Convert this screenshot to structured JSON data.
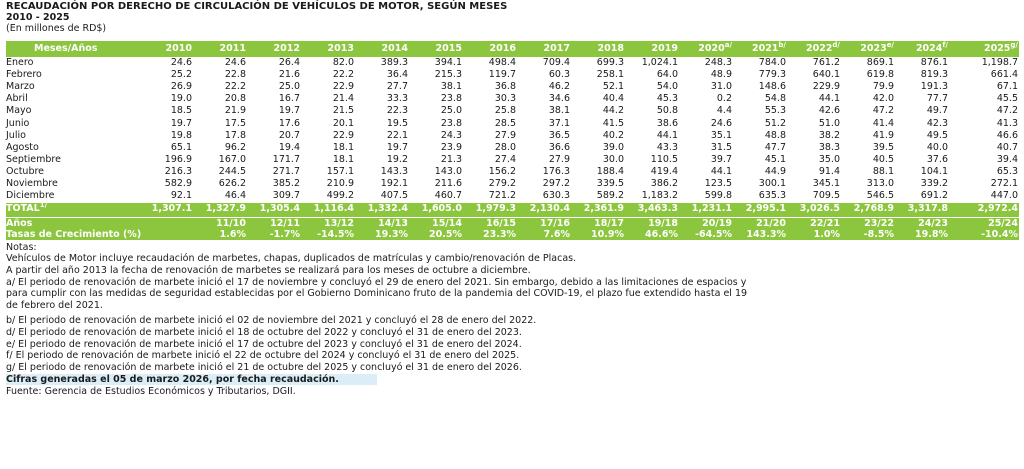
{
  "title": "RECAUDACIÓN POR DERECHO DE CIRCULACIÓN DE VEHÍCULOS DE MOTOR, SEGÚN MESES",
  "years_range": "2010 - 2025",
  "units": "(En millones de RD$)",
  "table": {
    "corner_label": "Meses/Años",
    "years": [
      {
        "label": "2010",
        "sup": ""
      },
      {
        "label": "2011",
        "sup": ""
      },
      {
        "label": "2012",
        "sup": ""
      },
      {
        "label": "2013",
        "sup": ""
      },
      {
        "label": "2014",
        "sup": ""
      },
      {
        "label": "2015",
        "sup": ""
      },
      {
        "label": "2016",
        "sup": ""
      },
      {
        "label": "2017",
        "sup": ""
      },
      {
        "label": "2018",
        "sup": ""
      },
      {
        "label": "2019",
        "sup": ""
      },
      {
        "label": "2020",
        "sup": "a/"
      },
      {
        "label": "2021",
        "sup": "b/"
      },
      {
        "label": "2022",
        "sup": "d/"
      },
      {
        "label": "2023",
        "sup": "e/"
      },
      {
        "label": "2024",
        "sup": "f/"
      },
      {
        "label": "2025",
        "sup": "g/"
      }
    ],
    "rows": [
      {
        "month": "Enero",
        "values": [
          "24.6",
          "24.6",
          "26.4",
          "82.0",
          "389.3",
          "394.1",
          "498.4",
          "709.4",
          "699.3",
          "1,024.1",
          "248.3",
          "784.0",
          "761.2",
          "869.1",
          "876.1",
          "1,198.7"
        ]
      },
      {
        "month": "Febrero",
        "values": [
          "25.2",
          "22.8",
          "21.6",
          "22.2",
          "36.4",
          "215.3",
          "119.7",
          "60.3",
          "258.1",
          "64.0",
          "48.9",
          "779.3",
          "640.1",
          "619.8",
          "819.3",
          "661.4"
        ]
      },
      {
        "month": "Marzo",
        "values": [
          "26.9",
          "22.2",
          "25.0",
          "22.9",
          "27.7",
          "38.1",
          "36.8",
          "46.2",
          "52.1",
          "54.0",
          "31.0",
          "148.6",
          "229.9",
          "79.9",
          "191.3",
          "67.1"
        ]
      },
      {
        "month": "Abril",
        "values": [
          "19.0",
          "20.8",
          "16.7",
          "21.4",
          "33.3",
          "23.8",
          "30.3",
          "34.6",
          "40.4",
          "45.3",
          "0.2",
          "54.8",
          "44.1",
          "42.0",
          "77.7",
          "45.5"
        ]
      },
      {
        "month": "Mayo",
        "values": [
          "18.5",
          "21.9",
          "19.7",
          "21.5",
          "22.3",
          "25.0",
          "25.8",
          "38.1",
          "44.2",
          "50.8",
          "4.4",
          "55.3",
          "42.6",
          "47.2",
          "49.7",
          "47.2"
        ]
      },
      {
        "month": "Junio",
        "values": [
          "19.7",
          "17.5",
          "17.6",
          "20.1",
          "19.5",
          "23.8",
          "28.5",
          "37.1",
          "41.5",
          "38.6",
          "24.6",
          "51.2",
          "51.0",
          "41.4",
          "42.3",
          "41.3"
        ]
      },
      {
        "month": "Julio",
        "values": [
          "19.8",
          "17.8",
          "20.7",
          "22.9",
          "22.1",
          "24.3",
          "27.9",
          "36.5",
          "40.2",
          "44.1",
          "35.1",
          "48.8",
          "38.2",
          "41.9",
          "49.5",
          "46.6"
        ]
      },
      {
        "month": "Agosto",
        "values": [
          "65.1",
          "96.2",
          "19.4",
          "18.1",
          "19.7",
          "23.9",
          "28.0",
          "36.6",
          "39.0",
          "43.3",
          "31.5",
          "47.7",
          "38.3",
          "39.5",
          "40.0",
          "40.7"
        ]
      },
      {
        "month": "Septiembre",
        "values": [
          "196.9",
          "167.0",
          "171.7",
          "18.1",
          "19.2",
          "21.3",
          "27.4",
          "27.9",
          "30.0",
          "110.5",
          "39.7",
          "45.1",
          "35.0",
          "40.5",
          "37.6",
          "39.4"
        ]
      },
      {
        "month": "Octubre",
        "values": [
          "216.3",
          "244.5",
          "271.7",
          "157.1",
          "143.3",
          "143.0",
          "156.2",
          "176.3",
          "188.4",
          "419.4",
          "44.1",
          "44.9",
          "91.4",
          "88.1",
          "104.1",
          "65.3"
        ]
      },
      {
        "month": "Noviembre",
        "values": [
          "582.9",
          "626.2",
          "385.2",
          "210.9",
          "192.1",
          "211.6",
          "279.2",
          "297.2",
          "339.5",
          "386.2",
          "123.5",
          "300.1",
          "345.1",
          "313.0",
          "339.2",
          "272.1"
        ]
      },
      {
        "month": "Diciembre",
        "values": [
          "92.1",
          "46.4",
          "309.7",
          "499.2",
          "407.5",
          "460.7",
          "721.2",
          "630.3",
          "589.2",
          "1,183.2",
          "599.8",
          "635.3",
          "709.5",
          "546.5",
          "691.2",
          "447.0"
        ]
      }
    ],
    "total": {
      "label": "TOTAL",
      "sup": "1/",
      "values": [
        "1,307.1",
        "1,327.9",
        "1,305.4",
        "1,116.4",
        "1,332.4",
        "1,605.0",
        "1,979.3",
        "2,130.4",
        "2,361.9",
        "3,463.3",
        "1,231.1",
        "2,995.1",
        "3,026.5",
        "2,768.9",
        "3,317.8",
        "2,972.4"
      ]
    }
  },
  "growth": {
    "years_label": "Años",
    "rate_label": "Tasas de Crecimiento (%)",
    "periods": [
      "11/10",
      "12/11",
      "13/12",
      "14/13",
      "15/14",
      "16/15",
      "17/16",
      "18/17",
      "19/18",
      "20/19",
      "21/20",
      "22/21",
      "23/22",
      "24/23",
      "25/24"
    ],
    "rates": [
      "1.6%",
      "-1.7%",
      "-14.5%",
      "19.3%",
      "20.5%",
      "23.3%",
      "7.6%",
      "10.9%",
      "46.6%",
      "-64.5%",
      "143.3%",
      "1.0%",
      "-8.5%",
      "19.8%",
      "-10.4%"
    ]
  },
  "notes": {
    "heading": "Notas:",
    "lines": [
      "Vehículos de Motor incluye recaudación de marbetes, chapas, duplicados de matrículas y cambio/renovación de Placas.",
      "A partir del año 2013 la fecha de renovación de marbetes se realizará para los meses de octubre a diciembre.",
      "a/ El periodo de renovación de marbete inició el 17 de noviembre y concluyó el 29 de enero del 2021. Sin embargo, debido a las limitaciones de espacios y",
      "para cumplir con las medidas de seguridad establecidas por el Gobierno Dominicano fruto de la pandemia del COVID-19, el plazo fue extendido hasta el 19",
      "de febrero del 2021.",
      "b/ El periodo de renovación de marbete inició el 02 de noviembre del 2021 y concluyó el 28 de enero del 2022.",
      "d/ El periodo de renovación de marbete inició el 18 de octubre del 2022 y concluyó el 31 de enero del 2023.",
      "e/ El periodo de renovación de marbete inició el 17 de octubre del 2023 y concluyó el 31 de enero del 2024.",
      "f/ El periodo de renovación de marbete inició el 22 de octubre del 2024 y concluyó el 31 de enero del 2025.",
      "g/ El periodo de renovación de marbete inició el 21 de octubre del 2025 y concluyó el 31 de enero del 2026."
    ],
    "generated": "Cifras generadas el 05 de marzo 2026, por fecha recaudación.",
    "source": "Fuente: Gerencia de Estudios Económicos y Tributarios, DGII."
  },
  "colors": {
    "header_green": "#8cc63f",
    "highlight_blue": "#dbeef7"
  }
}
